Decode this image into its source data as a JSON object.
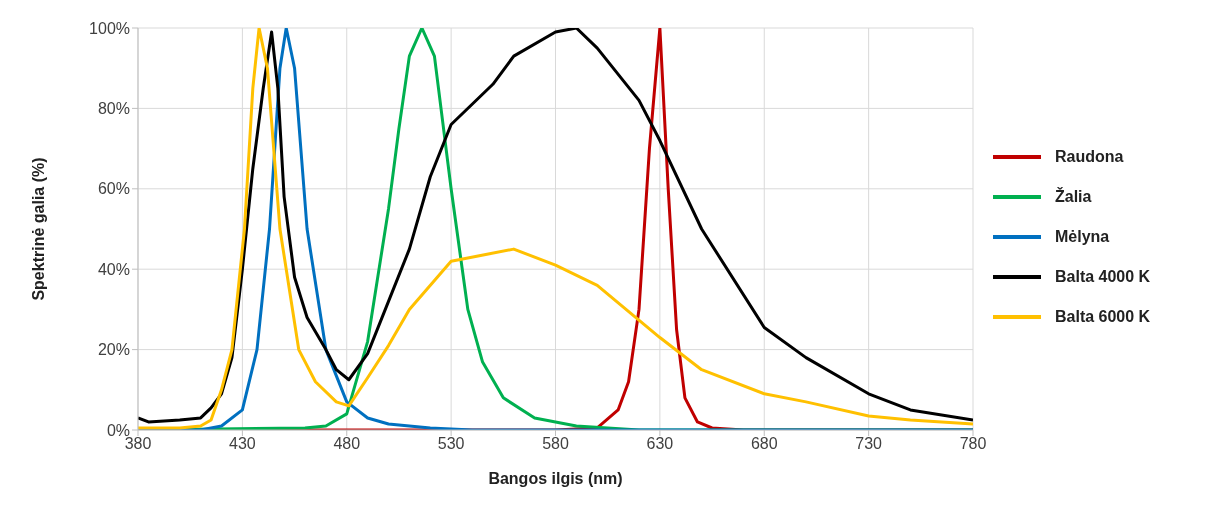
{
  "chart_data": {
    "type": "line",
    "xlabel": "Bangos ilgis (nm)",
    "ylabel": "Spektrinė galia (%)",
    "xlim": [
      380,
      780
    ],
    "xticks": [
      380,
      430,
      480,
      530,
      580,
      630,
      680,
      730,
      780
    ],
    "ylim": [
      0,
      100
    ],
    "yticks": [
      {
        "value": 0,
        "label": "0%"
      },
      {
        "value": 20,
        "label": "20%"
      },
      {
        "value": 40,
        "label": "40%"
      },
      {
        "value": 60,
        "label": "60%"
      },
      {
        "value": 80,
        "label": "80%"
      },
      {
        "value": 100,
        "label": "100%"
      }
    ],
    "grid": true,
    "legend": "right",
    "marker": "none",
    "line_style": "solid",
    "series": [
      {
        "name": "Raudona",
        "color": "#c00000",
        "x": [
          380,
          580,
          600,
          610,
          615,
          620,
          625,
          630,
          634,
          638,
          642,
          648,
          655,
          670,
          780
        ],
        "values": [
          0,
          0,
          0.5,
          5,
          12,
          30,
          70,
          100,
          60,
          25,
          8,
          2,
          0.5,
          0,
          0
        ]
      },
      {
        "name": "Žalia",
        "color": "#00b050",
        "x": [
          380,
          460,
          470,
          480,
          490,
          500,
          505,
          510,
          516,
          522,
          530,
          538,
          545,
          555,
          570,
          590,
          620,
          780
        ],
        "values": [
          0,
          0.5,
          1,
          4,
          22,
          55,
          75,
          93,
          100,
          93,
          60,
          30,
          17,
          8,
          3,
          1,
          0,
          0
        ]
      },
      {
        "name": "Mėlyna",
        "color": "#0070c0",
        "x": [
          380,
          410,
          420,
          430,
          437,
          443,
          448,
          451,
          455,
          461,
          470,
          480,
          490,
          500,
          520,
          540,
          780
        ],
        "values": [
          0,
          0,
          1,
          5,
          20,
          50,
          90,
          100,
          90,
          50,
          20,
          7,
          3,
          1.5,
          0.5,
          0,
          0
        ]
      },
      {
        "name": "Balta 4000 K",
        "color": "#000000",
        "x": [
          380,
          385,
          400,
          410,
          415,
          420,
          425,
          430,
          435,
          440,
          444,
          447,
          450,
          455,
          461,
          470,
          475,
          481,
          490,
          500,
          510,
          520,
          530,
          550,
          560,
          580,
          590,
          600,
          620,
          630,
          650,
          680,
          700,
          730,
          750,
          780
        ],
        "values": [
          3,
          2,
          2.5,
          3,
          5.5,
          9,
          18,
          40,
          65,
          85,
          99,
          85,
          58,
          38,
          28,
          20,
          15,
          12.5,
          19,
          32,
          45,
          63,
          76,
          86,
          93,
          99,
          100,
          95,
          82,
          72,
          50,
          25.5,
          18,
          9,
          5,
          2.5
        ]
      },
      {
        "name": "Balta 6000 K",
        "color": "#ffc000",
        "x": [
          380,
          400,
          410,
          415,
          420,
          425,
          431,
          435,
          438,
          442,
          448,
          457,
          465,
          475,
          481,
          490,
          500,
          510,
          530,
          560,
          580,
          600,
          630,
          650,
          680,
          700,
          730,
          750,
          780
        ],
        "values": [
          0.5,
          0.5,
          1,
          2.5,
          10,
          20,
          50,
          85,
          100,
          90,
          50,
          20,
          12,
          7,
          6,
          13,
          21,
          30,
          42,
          45,
          41,
          36,
          23,
          15,
          9,
          7,
          3.5,
          2.5,
          1.5
        ]
      }
    ]
  }
}
